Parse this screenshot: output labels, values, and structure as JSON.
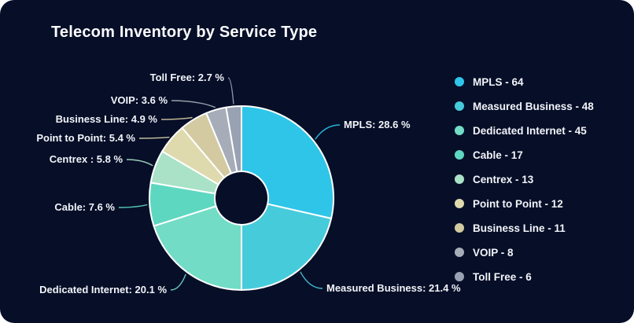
{
  "page": {
    "card_background": "#060e28",
    "outer_background": "#ffffff",
    "text_color": "#f2f4f8"
  },
  "header": {
    "title": "Telecom Inventory by Service Type"
  },
  "chart_data": {
    "type": "pie",
    "subtype": "donut",
    "title": "Telecom Inventory by Service Type",
    "direction": "clockwise",
    "start_angle_deg": 0,
    "legend_position": "right",
    "categories": [
      "MPLS",
      "Measured Business",
      "Dedicated Internet",
      "Cable",
      "Centrex",
      "Point to Point",
      "Business Line",
      "VOIP",
      "Toll Free"
    ],
    "values": [
      64,
      48,
      45,
      17,
      13,
      12,
      11,
      8,
      6
    ],
    "percents": [
      28.6,
      21.4,
      20.1,
      7.6,
      5.8,
      5.4,
      4.9,
      3.6,
      2.7
    ],
    "colors": [
      "#2ec5e8",
      "#46cbdb",
      "#72dcc6",
      "#5ed7c1",
      "#a9e2c7",
      "#dedaad",
      "#d3caa1",
      "#a6adb8",
      "#98a2b3"
    ],
    "slice_labels": [
      "MPLS: 28.6 %",
      "Measured Business: 21.4 %",
      "Dedicated Internet: 20.1 %",
      "Cable: 7.6 %",
      "Centrex : 5.8 %",
      "Point to Point: 5.4 %",
      "Business Line: 4.9 %",
      "VOIP: 3.6 %",
      "Toll Free: 2.7 %"
    ],
    "legend_labels": [
      "MPLS - 64",
      "Measured Business - 48",
      "Dedicated Internet - 45",
      "Cable - 17",
      "Centrex - 13",
      "Point to Point - 12",
      "Business Line - 11",
      "VOIP - 8",
      "Toll Free - 6"
    ]
  }
}
